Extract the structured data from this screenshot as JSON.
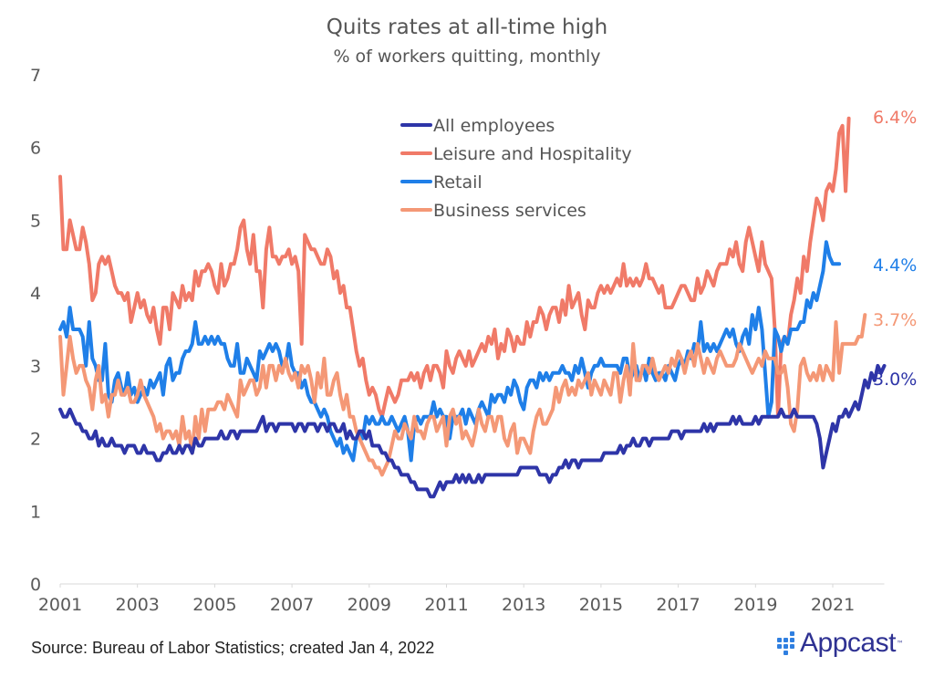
{
  "chart_data": {
    "type": "line",
    "title": "Quits rates at all-time high",
    "subtitle": "% of workers quitting, monthly",
    "xlabel": "",
    "ylabel": "",
    "x_start": "2001-01",
    "x_end": "2021-11",
    "x_frequency": "monthly",
    "x_ticks": [
      "2001",
      "2003",
      "2005",
      "2007",
      "2009",
      "2011",
      "2013",
      "2015",
      "2017",
      "2019",
      "2021"
    ],
    "ylim": [
      0,
      7
    ],
    "y_ticks": [
      "0",
      "1",
      "2",
      "3",
      "4",
      "5",
      "6",
      "7"
    ],
    "grid": false,
    "legend_position": "top-center",
    "series": [
      {
        "name": "All employees",
        "color": "#2e35a8",
        "end_label": "3.0%",
        "values": [
          2.4,
          2.3,
          2.3,
          2.4,
          2.3,
          2.2,
          2.2,
          2.1,
          2.1,
          2.0,
          2.0,
          2.1,
          1.9,
          2.0,
          1.9,
          1.9,
          2.0,
          1.9,
          1.9,
          1.9,
          1.8,
          1.9,
          1.9,
          1.9,
          1.8,
          1.8,
          1.9,
          1.8,
          1.8,
          1.8,
          1.7,
          1.7,
          1.8,
          1.8,
          1.9,
          1.8,
          1.8,
          1.9,
          1.8,
          1.9,
          1.9,
          1.8,
          2.0,
          1.9,
          1.9,
          2.0,
          2.0,
          2.0,
          2.0,
          2.0,
          2.1,
          2.0,
          2.0,
          2.1,
          2.1,
          2.0,
          2.1,
          2.1,
          2.1,
          2.1,
          2.1,
          2.1,
          2.2,
          2.3,
          2.1,
          2.2,
          2.2,
          2.1,
          2.2,
          2.2,
          2.2,
          2.2,
          2.2,
          2.1,
          2.2,
          2.2,
          2.1,
          2.2,
          2.2,
          2.2,
          2.1,
          2.2,
          2.2,
          2.1,
          2.2,
          2.2,
          2.1,
          2.1,
          2.2,
          2.0,
          2.1,
          2.0,
          2.0,
          2.1,
          2.1,
          2.0,
          2.1,
          1.9,
          1.9,
          1.9,
          1.8,
          1.8,
          1.7,
          1.7,
          1.6,
          1.6,
          1.5,
          1.5,
          1.5,
          1.4,
          1.4,
          1.3,
          1.3,
          1.3,
          1.3,
          1.2,
          1.2,
          1.3,
          1.4,
          1.3,
          1.4,
          1.4,
          1.4,
          1.5,
          1.4,
          1.5,
          1.4,
          1.5,
          1.4,
          1.4,
          1.5,
          1.4,
          1.5,
          1.5,
          1.5,
          1.5,
          1.5,
          1.5,
          1.5,
          1.5,
          1.5,
          1.5,
          1.5,
          1.6,
          1.6,
          1.6,
          1.6,
          1.6,
          1.6,
          1.5,
          1.5,
          1.5,
          1.4,
          1.5,
          1.5,
          1.6,
          1.6,
          1.7,
          1.6,
          1.7,
          1.7,
          1.6,
          1.7,
          1.7,
          1.7,
          1.7,
          1.7,
          1.7,
          1.7,
          1.8,
          1.8,
          1.8,
          1.8,
          1.8,
          1.9,
          1.8,
          1.9,
          1.9,
          2.0,
          1.9,
          1.9,
          2.0,
          2.0,
          1.9,
          2.0,
          2.0,
          2.0,
          2.0,
          2.0,
          2.0,
          2.1,
          2.1,
          2.1,
          2.0,
          2.1,
          2.1,
          2.1,
          2.1,
          2.1,
          2.1,
          2.2,
          2.1,
          2.2,
          2.1,
          2.2,
          2.2,
          2.2,
          2.2,
          2.2,
          2.3,
          2.2,
          2.3,
          2.2,
          2.2,
          2.2,
          2.2,
          2.3,
          2.2,
          2.3,
          2.3,
          2.3,
          2.3,
          2.3,
          2.3,
          2.4,
          2.3,
          2.3,
          2.3,
          2.4,
          2.3,
          2.3,
          2.3,
          2.3,
          2.3,
          2.3,
          2.2,
          2.0,
          1.6,
          1.8,
          2.0,
          2.2,
          2.1,
          2.3,
          2.3,
          2.4,
          2.3,
          2.4,
          2.5,
          2.4,
          2.6,
          2.8,
          2.7,
          2.9,
          2.8,
          3.0,
          2.9,
          3.0
        ]
      },
      {
        "name": "Leisure and Hospitality",
        "color": "#f07a68",
        "end_label": "6.4%",
        "values": [
          5.6,
          4.6,
          4.6,
          5.0,
          4.8,
          4.6,
          4.6,
          4.9,
          4.7,
          4.4,
          3.9,
          4.0,
          4.4,
          4.5,
          4.4,
          4.5,
          4.3,
          4.1,
          4.0,
          4.0,
          3.9,
          4.0,
          3.6,
          3.8,
          4.0,
          3.8,
          3.9,
          3.7,
          3.6,
          3.8,
          3.5,
          3.3,
          3.8,
          3.8,
          3.5,
          4.0,
          3.9,
          3.8,
          4.1,
          3.9,
          4.0,
          3.9,
          4.3,
          4.1,
          4.3,
          4.3,
          4.4,
          4.3,
          4.1,
          4.0,
          4.4,
          4.1,
          4.2,
          4.4,
          4.4,
          4.6,
          4.9,
          5.0,
          4.6,
          4.4,
          4.8,
          4.3,
          4.3,
          3.8,
          4.6,
          4.9,
          4.5,
          4.5,
          4.4,
          4.5,
          4.5,
          4.6,
          4.4,
          4.5,
          4.3,
          3.3,
          4.8,
          4.7,
          4.6,
          4.6,
          4.5,
          4.4,
          4.4,
          4.6,
          4.5,
          4.2,
          4.3,
          4.0,
          4.1,
          3.8,
          3.8,
          3.5,
          3.2,
          3.0,
          3.1,
          2.8,
          2.6,
          2.7,
          2.6,
          2.4,
          2.3,
          2.5,
          2.7,
          2.6,
          2.5,
          2.6,
          2.8,
          2.8,
          2.8,
          2.9,
          2.8,
          2.9,
          2.7,
          2.9,
          3.0,
          2.8,
          3.0,
          3.0,
          2.9,
          2.7,
          3.2,
          3.0,
          2.9,
          3.1,
          3.2,
          3.1,
          3.0,
          3.2,
          3.0,
          3.1,
          3.2,
          3.3,
          3.2,
          3.4,
          3.3,
          3.5,
          3.1,
          3.3,
          3.2,
          3.5,
          3.4,
          3.2,
          3.4,
          3.3,
          3.3,
          3.6,
          3.4,
          3.6,
          3.6,
          3.8,
          3.7,
          3.5,
          3.7,
          3.8,
          3.8,
          3.6,
          3.9,
          3.7,
          4.1,
          3.8,
          3.9,
          4.0,
          3.7,
          3.5,
          3.9,
          3.8,
          3.8,
          4.0,
          4.1,
          4.0,
          4.1,
          4.0,
          4.1,
          4.2,
          4.1,
          4.4,
          4.1,
          4.2,
          4.1,
          4.2,
          4.1,
          4.2,
          4.4,
          4.2,
          4.2,
          4.1,
          4.0,
          4.1,
          3.8,
          3.8,
          3.8,
          3.9,
          4.0,
          4.1,
          4.1,
          4.0,
          3.9,
          3.9,
          4.2,
          4.0,
          4.1,
          4.3,
          4.2,
          4.1,
          4.3,
          4.4,
          4.4,
          4.4,
          4.6,
          4.5,
          4.7,
          4.4,
          4.3,
          4.7,
          4.9,
          4.7,
          4.5,
          4.3,
          4.7,
          4.4,
          4.3,
          4.2,
          3.5,
          2.3,
          3.3,
          3.4,
          3.3,
          3.7,
          3.9,
          4.2,
          4.0,
          4.5,
          4.3,
          4.7,
          5.0,
          5.3,
          5.2,
          5.0,
          5.4,
          5.5,
          5.4,
          5.7,
          6.2,
          6.3,
          5.4,
          6.4
        ]
      },
      {
        "name": "Retail",
        "color": "#1f7fe8",
        "end_label": "4.4%",
        "values": [
          3.5,
          3.6,
          3.4,
          3.8,
          3.5,
          3.5,
          3.5,
          3.4,
          3.0,
          3.6,
          3.1,
          3.0,
          2.8,
          2.8,
          3.3,
          2.6,
          2.5,
          2.8,
          2.9,
          2.7,
          2.6,
          2.9,
          2.6,
          2.7,
          2.5,
          2.6,
          2.7,
          2.6,
          2.8,
          2.7,
          2.8,
          2.9,
          2.6,
          3.0,
          3.1,
          2.8,
          2.9,
          2.9,
          3.1,
          3.2,
          3.2,
          3.3,
          3.6,
          3.3,
          3.3,
          3.4,
          3.3,
          3.4,
          3.3,
          3.4,
          3.3,
          3.3,
          3.1,
          3.0,
          3.0,
          3.3,
          2.9,
          2.9,
          3.1,
          3.0,
          2.9,
          2.8,
          3.2,
          3.1,
          3.2,
          3.3,
          3.2,
          3.3,
          3.2,
          3.0,
          3.0,
          3.3,
          3.0,
          2.9,
          2.9,
          2.7,
          2.8,
          2.6,
          2.5,
          2.5,
          2.4,
          2.3,
          2.4,
          2.3,
          2.1,
          2.0,
          1.9,
          2.0,
          1.8,
          1.9,
          1.8,
          1.7,
          2.0,
          2.1,
          2.0,
          2.3,
          2.2,
          2.3,
          2.2,
          2.2,
          2.3,
          2.2,
          2.2,
          2.3,
          2.2,
          2.1,
          2.2,
          2.3,
          2.1,
          1.7,
          2.2,
          2.3,
          2.2,
          2.3,
          2.3,
          2.3,
          2.5,
          2.3,
          2.4,
          2.3,
          2.3,
          2.0,
          2.3,
          2.3,
          2.3,
          2.4,
          2.2,
          2.4,
          2.3,
          2.2,
          2.4,
          2.5,
          2.4,
          2.3,
          2.6,
          2.5,
          2.6,
          2.6,
          2.5,
          2.7,
          2.6,
          2.8,
          2.7,
          2.5,
          2.4,
          2.7,
          2.8,
          2.8,
          2.7,
          2.9,
          2.8,
          2.9,
          2.8,
          2.9,
          2.9,
          2.9,
          3.0,
          2.9,
          2.9,
          2.8,
          3.0,
          2.9,
          3.1,
          2.9,
          2.7,
          2.9,
          3.0,
          3.0,
          3.1,
          3.0,
          3.0,
          3.0,
          3.0,
          3.0,
          2.9,
          3.1,
          3.1,
          2.8,
          2.9,
          3.0,
          2.8,
          3.0,
          2.8,
          3.1,
          2.9,
          2.8,
          2.9,
          2.9,
          2.8,
          3.0,
          2.9,
          2.8,
          3.0,
          3.1,
          3.0,
          3.2,
          3.1,
          3.3,
          3.2,
          3.6,
          3.2,
          3.3,
          3.2,
          3.3,
          3.2,
          3.3,
          3.4,
          3.5,
          3.4,
          3.5,
          3.3,
          3.2,
          3.4,
          3.5,
          3.3,
          3.7,
          3.5,
          3.8,
          3.5,
          2.9,
          2.3,
          2.5,
          3.5,
          3.4,
          3.2,
          3.4,
          3.3,
          3.5,
          3.5,
          3.5,
          3.6,
          3.6,
          3.9,
          3.8,
          4.0,
          3.9,
          4.1,
          4.3,
          4.7,
          4.5,
          4.4,
          4.4,
          4.4
        ]
      },
      {
        "name": "Business services",
        "color": "#f49876",
        "end_label": "3.7%",
        "values": [
          3.4,
          2.6,
          3.0,
          3.4,
          3.1,
          2.9,
          3.0,
          3.0,
          2.8,
          2.7,
          2.4,
          2.8,
          3.0,
          2.5,
          2.6,
          2.3,
          2.6,
          2.6,
          2.8,
          2.6,
          2.6,
          2.7,
          2.5,
          2.5,
          2.6,
          2.8,
          2.6,
          2.5,
          2.4,
          2.3,
          2.1,
          2.2,
          2.0,
          2.1,
          2.1,
          2.0,
          2.1,
          1.9,
          2.3,
          2.0,
          2.1,
          1.8,
          2.3,
          2.0,
          2.4,
          2.1,
          2.4,
          2.4,
          2.4,
          2.5,
          2.5,
          2.4,
          2.6,
          2.5,
          2.4,
          2.3,
          2.8,
          2.6,
          2.7,
          2.8,
          2.8,
          2.6,
          2.7,
          3.0,
          2.7,
          3.0,
          3.0,
          2.8,
          3.0,
          2.9,
          3.1,
          2.9,
          2.8,
          2.9,
          2.7,
          3.0,
          2.9,
          3.0,
          2.8,
          2.5,
          2.9,
          2.7,
          3.1,
          2.6,
          2.6,
          2.8,
          2.9,
          2.6,
          2.4,
          2.6,
          2.3,
          2.3,
          2.1,
          2.0,
          1.9,
          1.8,
          1.7,
          1.7,
          1.6,
          1.6,
          1.5,
          1.6,
          1.7,
          1.9,
          2.1,
          2.0,
          2.0,
          2.2,
          2.1,
          2.0,
          2.3,
          2.1,
          2.1,
          2.0,
          2.2,
          2.3,
          2.3,
          2.1,
          2.2,
          2.3,
          1.9,
          2.3,
          2.4,
          2.2,
          2.3,
          2.0,
          2.1,
          2.0,
          1.9,
          2.1,
          2.4,
          2.2,
          2.1,
          2.3,
          2.3,
          2.1,
          2.3,
          2.3,
          2.0,
          1.9,
          2.1,
          2.2,
          1.8,
          2.0,
          2.0,
          1.9,
          1.8,
          2.1,
          2.3,
          2.4,
          2.2,
          2.2,
          2.3,
          2.4,
          2.7,
          2.5,
          2.7,
          2.8,
          2.6,
          2.7,
          2.6,
          2.8,
          2.7,
          2.8,
          2.9,
          2.6,
          2.8,
          2.7,
          2.6,
          2.8,
          2.7,
          2.6,
          2.9,
          2.9,
          2.5,
          2.8,
          3.0,
          2.6,
          3.3,
          2.8,
          2.8,
          3.0,
          3.0,
          2.9,
          3.1,
          2.9,
          2.8,
          2.9,
          3.0,
          2.9,
          3.1,
          3.0,
          3.2,
          3.1,
          2.9,
          3.1,
          3.2,
          3.0,
          3.3,
          3.1,
          2.9,
          3.1,
          3.0,
          2.9,
          3.1,
          3.2,
          3.1,
          3.0,
          3.0,
          3.0,
          3.1,
          3.3,
          3.2,
          3.1,
          3.0,
          2.9,
          3.0,
          3.1,
          3.0,
          3.2,
          3.1,
          3.1,
          3.1,
          2.9,
          2.9,
          3.0,
          2.7,
          2.2,
          2.1,
          2.4,
          3.0,
          3.1,
          2.9,
          2.8,
          2.9,
          2.8,
          3.0,
          2.8,
          3.0,
          2.9,
          2.8,
          3.6,
          2.9,
          3.3,
          3.3,
          3.3,
          3.3,
          3.3,
          3.4,
          3.4,
          3.7
        ]
      }
    ]
  },
  "footer": {
    "source": "Source: Bureau of Labor Statistics; created Jan 4, 2022",
    "logo_text": "Appcast",
    "logo_mark": "™"
  }
}
